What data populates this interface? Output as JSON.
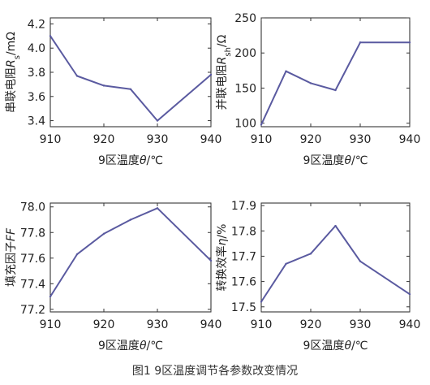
{
  "caption": "图1  9区温度调节各参数改变情况",
  "styles": {
    "line_color": "#5a5aa0",
    "axis_color": "#222222",
    "tick_color": "#333333"
  },
  "chart_data": [
    {
      "type": "line",
      "x": [
        910,
        915,
        920,
        925,
        930,
        940
      ],
      "y": [
        4.1,
        3.77,
        3.69,
        3.66,
        3.4,
        3.78
      ],
      "xlim": [
        910,
        940
      ],
      "ylim": [
        3.35,
        4.25
      ],
      "xticks": [
        910,
        920,
        930,
        940
      ],
      "yticks": [
        3.4,
        3.6,
        3.8,
        4.0,
        4.2
      ],
      "ytick_labels": [
        "3.4",
        "3.6",
        "3.8",
        "4.0",
        "4.2"
      ],
      "xlabel": "9区温度θ/℃",
      "ylabel": "串联电阻Rs/mΩ"
    },
    {
      "type": "line",
      "x": [
        910,
        915,
        920,
        925,
        930,
        940
      ],
      "y": [
        98,
        174,
        157,
        147,
        215,
        215
      ],
      "xlim": [
        910,
        940
      ],
      "ylim": [
        95,
        250
      ],
      "xticks": [
        910,
        920,
        930,
        940
      ],
      "yticks": [
        100,
        150,
        200,
        250
      ],
      "ytick_labels": [
        "100",
        "150",
        "200",
        "250"
      ],
      "xlabel": "9区温度θ/℃",
      "ylabel": "并联电阻Rsh/Ω"
    },
    {
      "type": "line",
      "x": [
        910,
        915,
        920,
        925,
        930,
        940
      ],
      "y": [
        77.3,
        77.63,
        77.79,
        77.9,
        77.99,
        77.58
      ],
      "xlim": [
        910,
        940
      ],
      "ylim": [
        77.18,
        78.03
      ],
      "xticks": [
        910,
        920,
        930,
        940
      ],
      "yticks": [
        77.2,
        77.4,
        77.6,
        77.8,
        78.0
      ],
      "ytick_labels": [
        "77.2",
        "77.4",
        "77.6",
        "77.8",
        "78.0"
      ],
      "xlabel": "9区温度θ/℃",
      "ylabel": "填充因子FF"
    },
    {
      "type": "line",
      "x": [
        910,
        915,
        920,
        925,
        930,
        940
      ],
      "y": [
        17.52,
        17.67,
        17.71,
        17.82,
        17.68,
        17.55
      ],
      "xlim": [
        910,
        940
      ],
      "ylim": [
        17.48,
        17.91
      ],
      "xticks": [
        910,
        920,
        930,
        940
      ],
      "yticks": [
        17.5,
        17.6,
        17.7,
        17.8,
        17.9
      ],
      "ytick_labels": [
        "17.5",
        "17.6",
        "17.7",
        "17.8",
        "17.9"
      ],
      "xlabel": "9区温度θ/℃",
      "ylabel": "转换效率η/%"
    }
  ]
}
